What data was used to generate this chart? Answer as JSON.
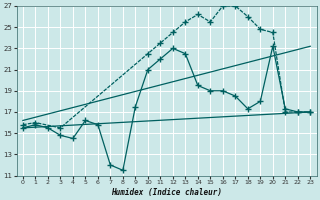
{
  "xlabel": "Humidex (Indice chaleur)",
  "background_color": "#cce8e8",
  "grid_color": "#aacccc",
  "line_color": "#006060",
  "xlim": [
    -0.5,
    23.5
  ],
  "ylim": [
    11,
    27
  ],
  "xticks": [
    0,
    1,
    2,
    3,
    4,
    5,
    6,
    7,
    8,
    9,
    10,
    11,
    12,
    13,
    14,
    15,
    16,
    17,
    18,
    19,
    20,
    21,
    22,
    23
  ],
  "yticks": [
    11,
    13,
    15,
    17,
    19,
    21,
    23,
    25,
    27
  ],
  "series_zigzag_x": [
    0,
    1,
    2,
    3,
    4,
    5,
    6,
    7,
    8,
    9,
    10,
    11,
    12,
    13,
    14,
    15,
    16,
    17,
    18,
    19,
    20,
    21,
    22,
    23
  ],
  "series_zigzag_y": [
    15.5,
    15.8,
    15.5,
    14.8,
    14.5,
    16.2,
    15.8,
    12.0,
    11.5,
    17.5,
    21.0,
    22.0,
    23.0,
    22.5,
    19.5,
    19.0,
    19.0,
    18.5,
    17.3,
    18.0,
    23.2,
    17.3,
    17.0,
    17.0
  ],
  "series_upper_x": [
    0,
    1,
    3,
    10,
    11,
    12,
    13,
    14,
    15,
    16,
    17,
    18,
    19,
    20,
    21,
    22,
    23
  ],
  "series_upper_y": [
    15.8,
    16.0,
    15.5,
    22.5,
    23.5,
    24.5,
    25.5,
    26.2,
    25.5,
    27.0,
    27.0,
    26.0,
    24.8,
    24.5,
    17.0,
    17.0,
    17.0
  ],
  "trend1_x": [
    0,
    23
  ],
  "trend1_y": [
    15.5,
    17.0
  ],
  "trend2_x": [
    0,
    23
  ],
  "trend2_y": [
    16.2,
    23.2
  ]
}
